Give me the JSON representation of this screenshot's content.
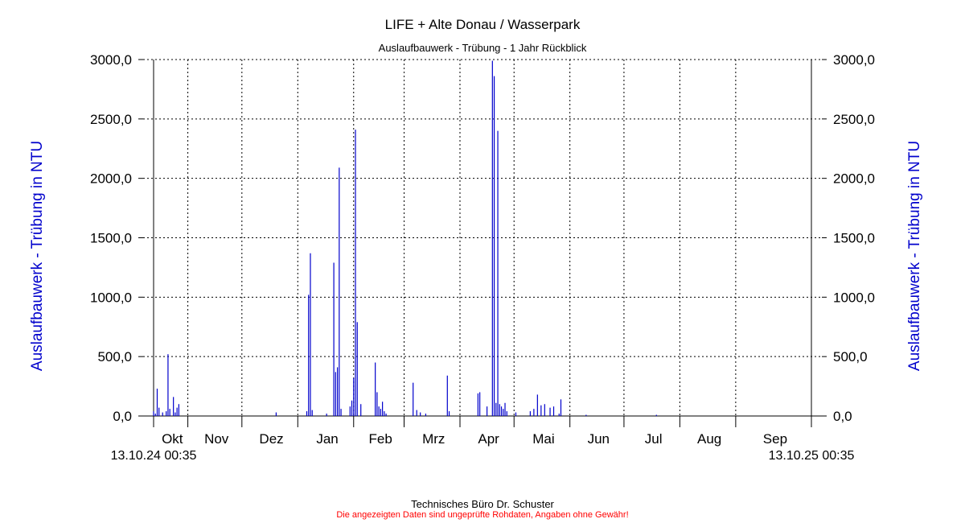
{
  "chart_data": {
    "type": "bar",
    "title": "LIFE + Alte Donau / Wasserpark",
    "subtitle": "Auslaufbauwerk - Trübung - 1 Jahr Rückblick",
    "ylabel_left": "Auslaufbauwerk - Trübung in NTU",
    "ylabel_right": "Auslaufbauwerk - Trübung in NTU",
    "ylim": [
      0,
      3000
    ],
    "yticks": [
      "0,0",
      "500,0",
      "1000,0",
      "1500,0",
      "2000,0",
      "2500,0",
      "3000,0"
    ],
    "ytick_values": [
      0,
      500,
      1000,
      1500,
      2000,
      2500,
      3000
    ],
    "x_range": [
      "2024-10-13",
      "2025-10-13"
    ],
    "x_start_label": "13.10.24 00:35",
    "x_end_label": "13.10.25 00:35",
    "months": [
      {
        "label": "Okt",
        "date": "2024-10-13"
      },
      {
        "label": "Nov",
        "date": "2024-11-01"
      },
      {
        "label": "Dez",
        "date": "2024-12-01"
      },
      {
        "label": "Jan",
        "date": "2025-01-01"
      },
      {
        "label": "Feb",
        "date": "2025-02-01"
      },
      {
        "label": "Mrz",
        "date": "2025-03-01"
      },
      {
        "label": "Apr",
        "date": "2025-04-01"
      },
      {
        "label": "Mai",
        "date": "2025-05-01"
      },
      {
        "label": "Jun",
        "date": "2025-06-01"
      },
      {
        "label": "Jul",
        "date": "2025-07-01"
      },
      {
        "label": "Aug",
        "date": "2025-08-01"
      },
      {
        "label": "Sep",
        "date": "2025-09-01"
      }
    ],
    "grid": true,
    "series_color": "#0000cc",
    "axis_label_color": "#0000cc",
    "series": [
      {
        "points": [
          [
            "2024-10-13",
            40
          ],
          [
            "2024-10-14",
            20
          ],
          [
            "2024-10-15",
            230
          ],
          [
            "2024-10-16",
            70
          ],
          [
            "2024-10-18",
            30
          ],
          [
            "2024-10-20",
            40
          ],
          [
            "2024-10-21",
            520
          ],
          [
            "2024-10-22",
            60
          ],
          [
            "2024-10-24",
            160
          ],
          [
            "2024-10-25",
            30
          ],
          [
            "2024-10-26",
            70
          ],
          [
            "2024-10-27",
            100
          ],
          [
            "2024-12-20",
            30
          ],
          [
            "2025-01-06",
            40
          ],
          [
            "2025-01-07",
            1020
          ],
          [
            "2025-01-08",
            1370
          ],
          [
            "2025-01-09",
            50
          ],
          [
            "2025-01-17",
            20
          ],
          [
            "2025-01-21",
            1290
          ],
          [
            "2025-01-22",
            370
          ],
          [
            "2025-01-23",
            410
          ],
          [
            "2025-01-24",
            2090
          ],
          [
            "2025-01-25",
            60
          ],
          [
            "2025-01-30",
            80
          ],
          [
            "2025-01-31",
            130
          ],
          [
            "2025-02-01",
            320
          ],
          [
            "2025-02-02",
            2410
          ],
          [
            "2025-02-03",
            790
          ],
          [
            "2025-02-05",
            100
          ],
          [
            "2025-02-13",
            450
          ],
          [
            "2025-02-14",
            200
          ],
          [
            "2025-02-15",
            80
          ],
          [
            "2025-02-16",
            60
          ],
          [
            "2025-02-17",
            120
          ],
          [
            "2025-02-18",
            40
          ],
          [
            "2025-02-19",
            20
          ],
          [
            "2025-03-06",
            280
          ],
          [
            "2025-03-08",
            50
          ],
          [
            "2025-03-10",
            30
          ],
          [
            "2025-03-13",
            20
          ],
          [
            "2025-03-25",
            340
          ],
          [
            "2025-03-26",
            40
          ],
          [
            "2025-04-11",
            190
          ],
          [
            "2025-04-12",
            200
          ],
          [
            "2025-04-16",
            80
          ],
          [
            "2025-04-19",
            2990
          ],
          [
            "2025-04-20",
            2860
          ],
          [
            "2025-04-21",
            110
          ],
          [
            "2025-04-22",
            2400
          ],
          [
            "2025-04-23",
            100
          ],
          [
            "2025-04-24",
            80
          ],
          [
            "2025-04-25",
            60
          ],
          [
            "2025-04-26",
            110
          ],
          [
            "2025-04-27",
            40
          ],
          [
            "2025-05-02",
            30
          ],
          [
            "2025-05-10",
            40
          ],
          [
            "2025-05-12",
            60
          ],
          [
            "2025-05-14",
            180
          ],
          [
            "2025-05-16",
            90
          ],
          [
            "2025-05-18",
            100
          ],
          [
            "2025-05-21",
            70
          ],
          [
            "2025-05-23",
            80
          ],
          [
            "2025-05-26",
            20
          ],
          [
            "2025-05-27",
            140
          ],
          [
            "2025-06-10",
            10
          ],
          [
            "2025-07-19",
            10
          ]
        ]
      }
    ]
  },
  "footer": {
    "company": "Technisches Büro Dr. Schuster",
    "disclaimer": "Die angezeigten Daten sind ungeprüfte Rohdaten, Angaben ohne Gewähr!"
  }
}
